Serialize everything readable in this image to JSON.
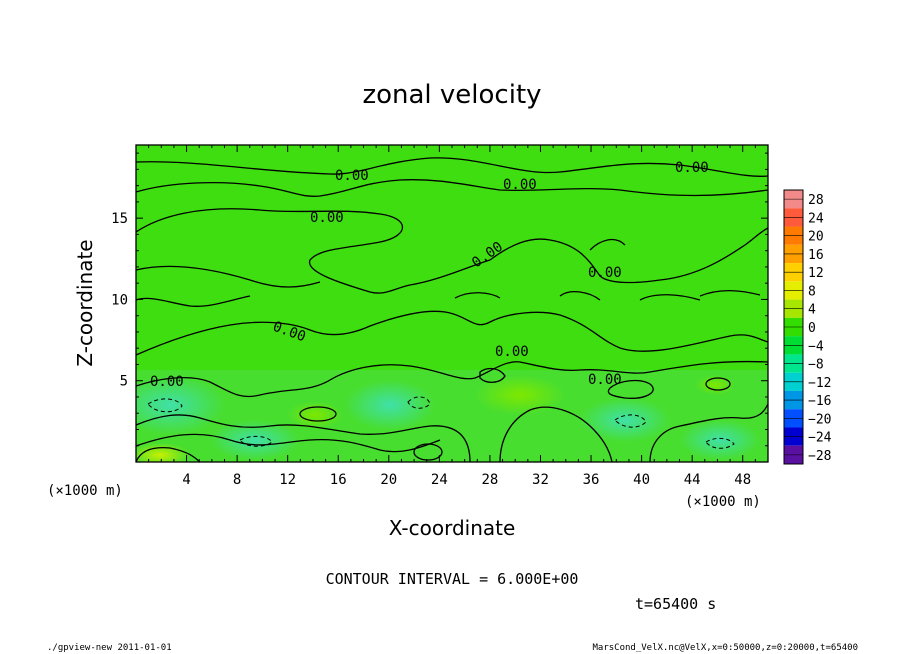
{
  "chart_data": {
    "type": "contour",
    "title": "zonal velocity",
    "xlabel": "X-coordinate",
    "ylabel": "Z-coordinate",
    "x_unit": "(×1000 m)",
    "y_unit": "(×1000 m)",
    "xlim": [
      0,
      50
    ],
    "ylim": [
      0,
      19.5
    ],
    "x_ticks": [
      "4",
      "8",
      "12",
      "16",
      "20",
      "24",
      "28",
      "32",
      "36",
      "40",
      "44",
      "48"
    ],
    "y_ticks": [
      "5",
      "10",
      "15"
    ],
    "contour_interval_label": "CONTOUR INTERVAL = 6.000E+00",
    "time_label": "t=65400 s",
    "contour_labels": [
      "0.00",
      "0.00",
      "0.00",
      "0.00",
      "0.00",
      "0.00",
      "0.00",
      "0.00",
      "0.00",
      "0.00",
      "0.00"
    ],
    "colorbar": {
      "levels": [
        "28",
        "24",
        "20",
        "16",
        "12",
        "8",
        "4",
        "0",
        "−4",
        "−8",
        "−12",
        "−16",
        "−20",
        "−24",
        "−28"
      ],
      "colors": [
        "#f28a8a",
        "#ff5a3c",
        "#ff7a00",
        "#ffa000",
        "#ffd000",
        "#e6ee00",
        "#a6e600",
        "#33dd00",
        "#00dd33",
        "#00e68c",
        "#00d0d0",
        "#0096e6",
        "#0050ff",
        "#0000d0",
        "#5a10a0"
      ]
    },
    "grid": false
  },
  "footer": {
    "left": "./gpview-new  2011-01-01",
    "right": "MarsCond_VelX.nc@VelX,x=0:50000,z=0:20000,t=65400"
  }
}
